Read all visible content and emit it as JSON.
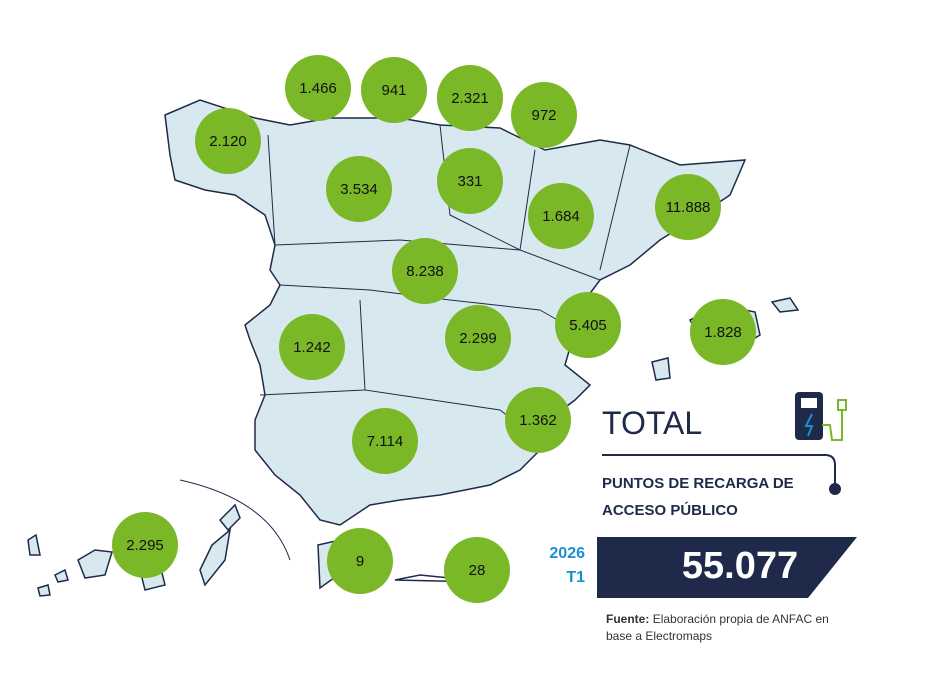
{
  "regions": [
    {
      "label": "1.466"
    },
    {
      "label": "941"
    },
    {
      "label": "2.321"
    },
    {
      "label": "972"
    },
    {
      "label": "2.120"
    },
    {
      "label": "3.534"
    },
    {
      "label": "331"
    },
    {
      "label": "1.684"
    },
    {
      "label": "11.888"
    },
    {
      "label": "8.238"
    },
    {
      "label": "5.405"
    },
    {
      "label": "1.828"
    },
    {
      "label": "1.242"
    },
    {
      "label": "2.299"
    },
    {
      "label": "1.362"
    },
    {
      "label": "7.114"
    },
    {
      "label": "2.295"
    },
    {
      "label": "9"
    },
    {
      "label": "28"
    }
  ],
  "total": {
    "title": "TOTAL",
    "subtitle": "PUNTOS DE RECARGA DE ACCESO PÚBLICO",
    "year": "2026",
    "quarter": "T1",
    "value": "55.077"
  },
  "source": {
    "label": "Fuente:",
    "text": "Elaboración propia de ANFAC en base a Electromaps"
  }
}
